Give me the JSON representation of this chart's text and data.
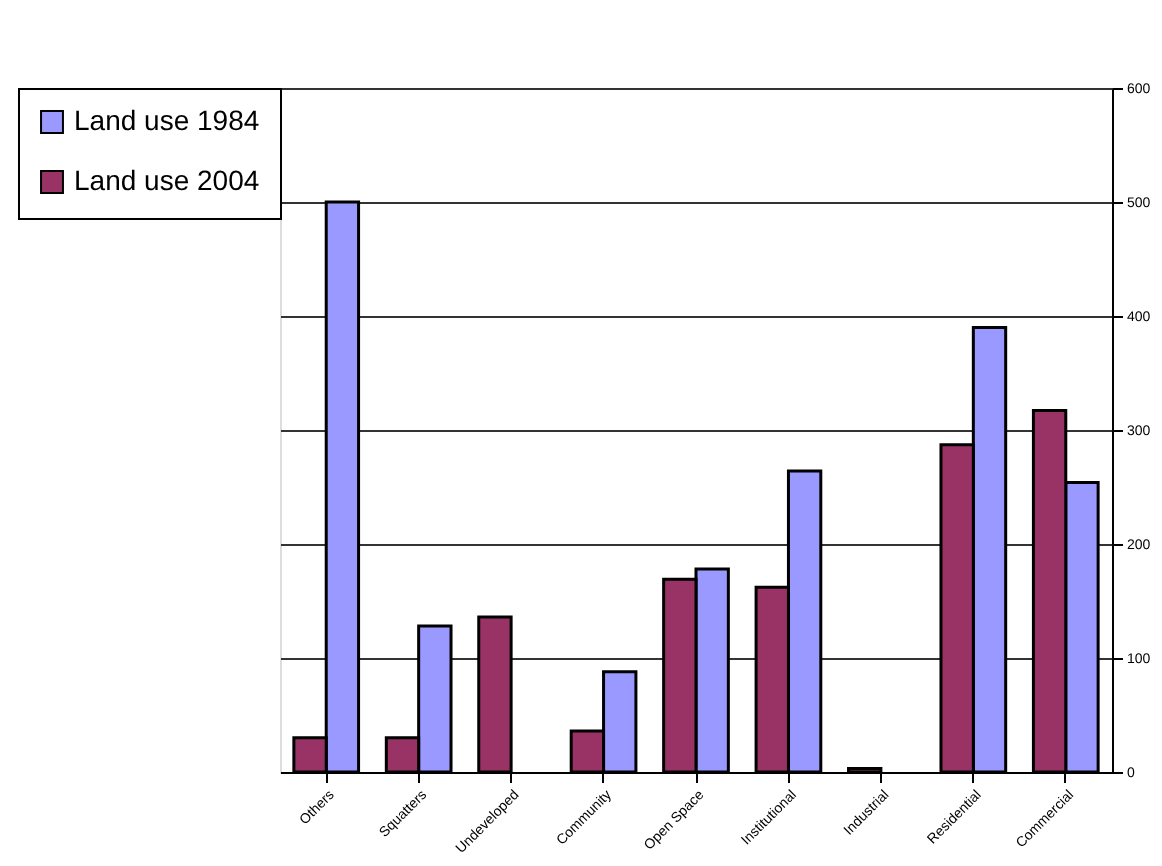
{
  "chart_data": {
    "type": "bar",
    "categories": [
      "Others",
      "Squatters",
      "Undeveloped",
      "Community",
      "Open Space",
      "Institutional",
      "Industrial",
      "Residential",
      "Commercial"
    ],
    "series": [
      {
        "name": "Land use 1984",
        "color": "#9999ff",
        "values": [
          500,
          128,
          null,
          88,
          178,
          264,
          null,
          390,
          254
        ]
      },
      {
        "name": "Land use 2004",
        "color": "#993366",
        "values": [
          30,
          30,
          136,
          36,
          169,
          162,
          3,
          287,
          317
        ]
      }
    ],
    "ylim": [
      0,
      600
    ],
    "yticks": [
      0,
      100,
      200,
      300,
      400,
      500,
      600
    ],
    "grid": "y",
    "legend": "left"
  }
}
